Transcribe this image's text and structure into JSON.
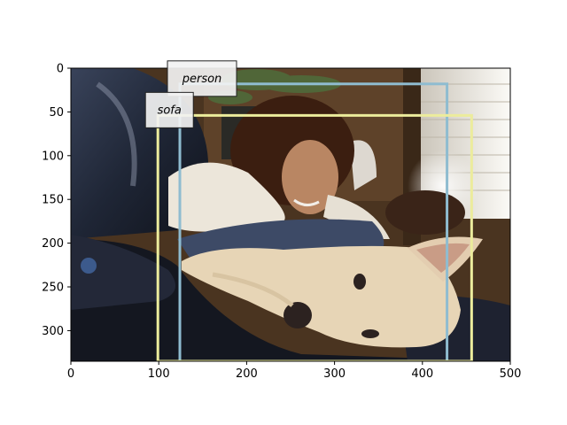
{
  "image": {
    "description_colors": {
      "sofa_leather": "#2b3346",
      "skin": "#b07b5a",
      "sweater": "#e8e2d6",
      "dog": "#e8d6b8",
      "window": "#e9e6e0",
      "wall": "#6b4a2b"
    },
    "width_units": 500,
    "height_units": 335
  },
  "axes": {
    "x_ticks": [
      "0",
      "100",
      "200",
      "300",
      "400",
      "500"
    ],
    "y_ticks": [
      "0",
      "50",
      "100",
      "150",
      "200",
      "250",
      "300"
    ],
    "xlim": [
      0,
      500
    ],
    "ylim": [
      335,
      0
    ]
  },
  "boxes": [
    {
      "label": "person",
      "color": "#8fbcd0",
      "x0": 124,
      "y0": 18,
      "x1": 428,
      "y1": 335
    },
    {
      "label": "sofa",
      "color": "#ecec9c",
      "x0": 99,
      "y0": 54,
      "x1": 456,
      "y1": 335
    }
  ]
}
